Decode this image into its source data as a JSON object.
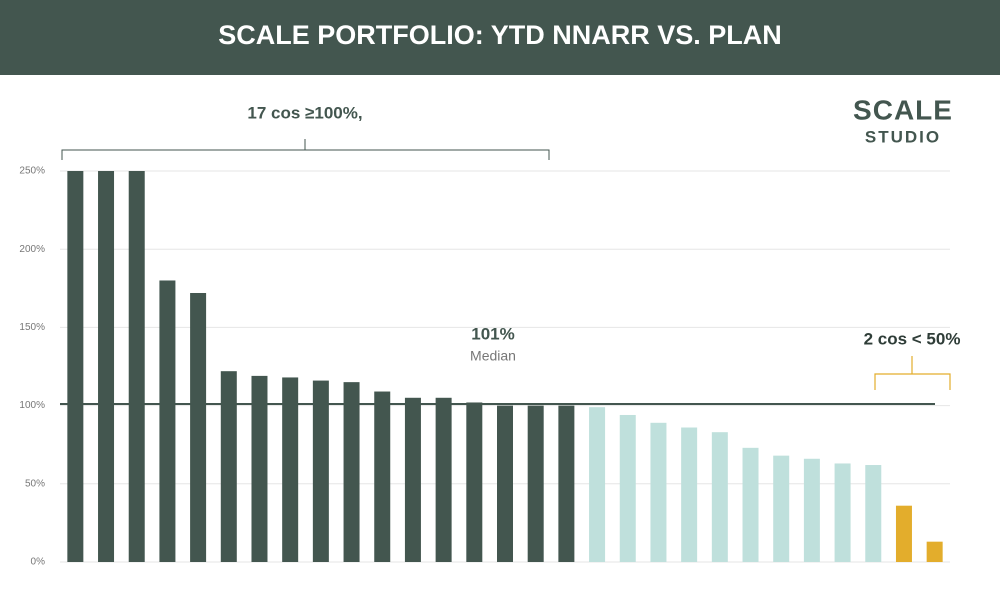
{
  "chart_data": {
    "type": "bar",
    "title": "SCALE PORTFOLIO: YTD NNARR VS. PLAN",
    "logo": {
      "line1": "SCALE",
      "line2": "STUDIO"
    },
    "values": [
      250,
      250,
      250,
      180,
      172,
      122,
      119,
      118,
      116,
      115,
      109,
      105,
      105,
      102,
      100,
      100,
      100,
      99,
      94,
      89,
      86,
      83,
      73,
      68,
      66,
      63,
      62,
      36,
      13
    ],
    "colors": [
      "#43564f",
      "#43564f",
      "#43564f",
      "#43564f",
      "#43564f",
      "#43564f",
      "#43564f",
      "#43564f",
      "#43564f",
      "#43564f",
      "#43564f",
      "#43564f",
      "#43564f",
      "#43564f",
      "#43564f",
      "#43564f",
      "#43564f",
      "#bfe0dc",
      "#bfe0dc",
      "#bfe0dc",
      "#bfe0dc",
      "#bfe0dc",
      "#bfe0dc",
      "#bfe0dc",
      "#bfe0dc",
      "#bfe0dc",
      "#bfe0dc",
      "#e3ad2c",
      "#e3ad2c"
    ],
    "ylim": [
      0,
      250
    ],
    "yticks": [
      {
        "value": 0,
        "label": "0%"
      },
      {
        "value": 50,
        "label": "50%"
      },
      {
        "value": 100,
        "label": "100%"
      },
      {
        "value": 150,
        "label": "150%"
      },
      {
        "value": 200,
        "label": "200%"
      },
      {
        "value": 250,
        "label": "250%"
      }
    ],
    "grid": true,
    "median": {
      "value": 101,
      "label": "101%",
      "text": "Median"
    },
    "annotations": [
      "17 cos ≥100%,",
      "2 cos < 50%"
    ]
  }
}
